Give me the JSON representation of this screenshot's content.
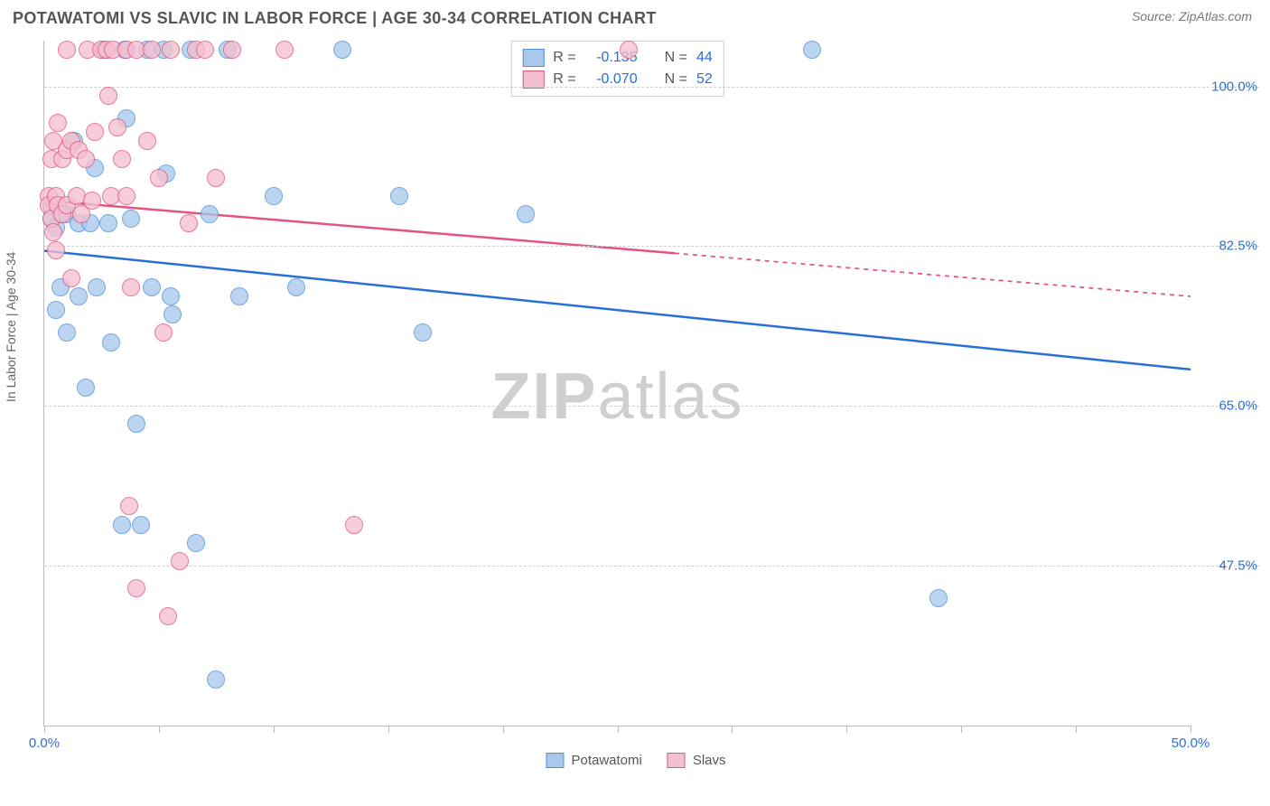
{
  "title": "POTAWATOMI VS SLAVIC IN LABOR FORCE | AGE 30-34 CORRELATION CHART",
  "sourceLabel": "Source: ZipAtlas.com",
  "ylabel": "In Labor Force | Age 30-34",
  "watermark": {
    "bold": "ZIP",
    "rest": "atlas"
  },
  "chart": {
    "type": "scatter",
    "xlim": [
      0,
      50
    ],
    "ylim": [
      30,
      105
    ],
    "xTicksMinor": [
      0,
      5,
      10,
      15,
      20,
      25,
      30,
      35,
      40,
      45,
      50
    ],
    "xTickLabels": [
      {
        "x": 0,
        "label": "0.0%",
        "color": "#2a6fd6"
      },
      {
        "x": 50,
        "label": "50.0%",
        "color": "#2a6fd6"
      }
    ],
    "yGrid": [
      {
        "y": 47.5,
        "label": "47.5%",
        "color": "#2a6fd6"
      },
      {
        "y": 65.0,
        "label": "65.0%",
        "color": "#2a6fd6"
      },
      {
        "y": 82.5,
        "label": "82.5%",
        "color": "#2a6fd6"
      },
      {
        "y": 100.0,
        "label": "100.0%",
        "color": "#2a6fd6"
      }
    ],
    "background": "#ffffff",
    "gridColor": "#d0d0d0",
    "axisColor": "#bbbbbb",
    "markerRadius": 9,
    "markerBorder": 1.5,
    "series": [
      {
        "name": "Potawatomi",
        "fill": "#a9c8ec",
        "stroke": "#4f8fd9",
        "rValue": "-0.135",
        "nValue": "44",
        "trend": {
          "x1": 0,
          "y1": 82,
          "x2": 50,
          "y2": 69,
          "solidTo": 50,
          "color": "#2a6fd6",
          "width": 2.5
        },
        "points": [
          [
            0.3,
            87
          ],
          [
            0.3,
            85.5
          ],
          [
            0.5,
            84.5
          ],
          [
            0.5,
            75.5
          ],
          [
            0.7,
            86
          ],
          [
            0.7,
            78
          ],
          [
            1.0,
            86
          ],
          [
            1.0,
            73
          ],
          [
            1.3,
            94
          ],
          [
            1.5,
            85
          ],
          [
            1.5,
            77
          ],
          [
            1.8,
            67
          ],
          [
            2.0,
            85
          ],
          [
            2.2,
            91
          ],
          [
            2.3,
            78
          ],
          [
            2.6,
            104
          ],
          [
            2.8,
            85
          ],
          [
            2.9,
            72
          ],
          [
            3.4,
            52
          ],
          [
            3.5,
            104
          ],
          [
            3.6,
            96.5
          ],
          [
            3.8,
            85.5
          ],
          [
            4.0,
            63
          ],
          [
            4.2,
            52
          ],
          [
            4.5,
            104
          ],
          [
            4.7,
            78
          ],
          [
            5.2,
            104
          ],
          [
            5.3,
            90.5
          ],
          [
            5.5,
            77
          ],
          [
            5.6,
            75
          ],
          [
            6.4,
            104
          ],
          [
            6.6,
            50
          ],
          [
            7.2,
            86
          ],
          [
            7.5,
            35
          ],
          [
            8.0,
            104
          ],
          [
            8.5,
            77
          ],
          [
            10.0,
            88
          ],
          [
            11.0,
            78
          ],
          [
            13.0,
            104
          ],
          [
            15.5,
            88
          ],
          [
            16.5,
            73
          ],
          [
            21.0,
            86
          ],
          [
            33.5,
            104
          ],
          [
            39.0,
            44
          ]
        ]
      },
      {
        "name": "Slavs",
        "fill": "#f4bfcf",
        "stroke": "#e3557e",
        "rValue": "-0.070",
        "nValue": "52",
        "trend": {
          "x1": 0,
          "y1": 87.5,
          "x2": 50,
          "y2": 77,
          "solidTo": 27.5,
          "color": "#e3557e",
          "width": 2.5
        },
        "points": [
          [
            0.2,
            88
          ],
          [
            0.2,
            87
          ],
          [
            0.3,
            92
          ],
          [
            0.3,
            85.5
          ],
          [
            0.4,
            94
          ],
          [
            0.4,
            84
          ],
          [
            0.5,
            88
          ],
          [
            0.5,
            82
          ],
          [
            0.6,
            96
          ],
          [
            0.6,
            87
          ],
          [
            0.8,
            92
          ],
          [
            0.8,
            86
          ],
          [
            1.0,
            104
          ],
          [
            1.0,
            93
          ],
          [
            1.0,
            87
          ],
          [
            1.2,
            94
          ],
          [
            1.2,
            79
          ],
          [
            1.4,
            88
          ],
          [
            1.5,
            93
          ],
          [
            1.6,
            86
          ],
          [
            1.8,
            92
          ],
          [
            1.9,
            104
          ],
          [
            2.1,
            87.5
          ],
          [
            2.2,
            95
          ],
          [
            2.5,
            104
          ],
          [
            2.7,
            104
          ],
          [
            2.8,
            99
          ],
          [
            2.9,
            88
          ],
          [
            3.0,
            104
          ],
          [
            3.2,
            95.5
          ],
          [
            3.4,
            92
          ],
          [
            3.6,
            104
          ],
          [
            3.6,
            88
          ],
          [
            3.7,
            54
          ],
          [
            3.8,
            78
          ],
          [
            4.0,
            104
          ],
          [
            4.0,
            45
          ],
          [
            4.5,
            94
          ],
          [
            4.7,
            104
          ],
          [
            5.0,
            90
          ],
          [
            5.2,
            73
          ],
          [
            5.4,
            42
          ],
          [
            5.5,
            104
          ],
          [
            5.9,
            48
          ],
          [
            6.3,
            85
          ],
          [
            6.6,
            104
          ],
          [
            7.0,
            104
          ],
          [
            7.5,
            90
          ],
          [
            8.2,
            104
          ],
          [
            10.5,
            104
          ],
          [
            13.5,
            52
          ],
          [
            25.5,
            104
          ]
        ]
      }
    ]
  },
  "legendTop": {
    "rLabel": "R =",
    "nLabel": "N =",
    "valueColor": "#2a6fd6"
  },
  "legendBottom": [
    {
      "label": "Potawatomi",
      "fill": "#a9c8ec",
      "stroke": "#4f8fd9"
    },
    {
      "label": "Slavs",
      "fill": "#f4bfcf",
      "stroke": "#e3557e"
    }
  ]
}
